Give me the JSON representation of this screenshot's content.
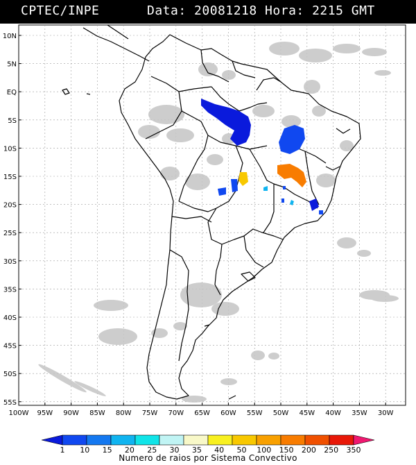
{
  "header": {
    "source": "CPTEC/INPE",
    "datetime": "Data: 20081218 Hora: 2215 GMT"
  },
  "map": {
    "lat_labels": [
      "10N",
      "5N",
      "EQ",
      "5S",
      "10S",
      "15S",
      "20S",
      "25S",
      "30S",
      "35S",
      "40S",
      "45S",
      "50S",
      "55S"
    ],
    "lon_labels": [
      "100W",
      "95W",
      "90W",
      "85W",
      "80W",
      "75W",
      "70W",
      "65W",
      "60W",
      "55W",
      "50W",
      "45W",
      "40W",
      "35W",
      "30W"
    ],
    "colors": {
      "cloud": "#c4c4c4",
      "coast": "#000000",
      "grid": "#9a9a9a"
    }
  },
  "legend": {
    "ticks": [
      "1",
      "10",
      "15",
      "20",
      "25",
      "30",
      "35",
      "40",
      "50",
      "100",
      "150",
      "200",
      "250",
      "350"
    ],
    "colors": [
      "#0a1adc",
      "#1048f0",
      "#1478f0",
      "#10b4f0",
      "#10e4e8",
      "#c0f4f4",
      "#f8f8c8",
      "#f8f020",
      "#f8c800",
      "#f8a000",
      "#f87c00",
      "#f05000",
      "#e81808",
      "#f01870"
    ],
    "caption": "Numero de raios por Sistema Convectivo"
  },
  "storms": {
    "colors": {
      "dark_blue": "#0a1adc",
      "blue": "#1048f0",
      "light_blue": "#10b4f0",
      "yellow": "#f8c800",
      "orange": "#f87c00"
    }
  }
}
